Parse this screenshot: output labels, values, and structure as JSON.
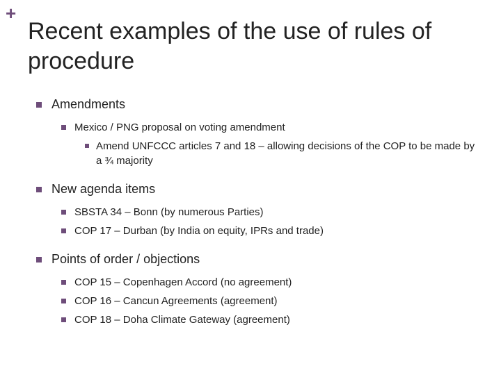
{
  "accent_color": "#6e4d7a",
  "text_color": "#222222",
  "background_color": "#ffffff",
  "plus_symbol": "+",
  "title": "Recent examples of the use of rules of procedure",
  "title_fontsize": 34,
  "heading_fontsize": 18,
  "body_fontsize": 15,
  "sections": [
    {
      "heading": "Amendments",
      "items": [
        {
          "text": "Mexico / PNG proposal on voting amendment",
          "subitems": [
            "Amend UNFCCC articles 7 and 18 – allowing decisions of the COP to be made by a ¾ majority"
          ]
        }
      ]
    },
    {
      "heading": "New agenda items",
      "items": [
        {
          "text": "SBSTA 34 – Bonn (by numerous Parties)"
        },
        {
          "text": "COP 17 – Durban (by India on equity, IPRs and trade)"
        }
      ]
    },
    {
      "heading": "Points of order / objections",
      "items": [
        {
          "text": "COP 15 – Copenhagen Accord (no agreement)"
        },
        {
          "text": "COP 16 – Cancun Agreements (agreement)"
        },
        {
          "text": "COP 18 – Doha Climate Gateway (agreement)"
        }
      ]
    }
  ]
}
